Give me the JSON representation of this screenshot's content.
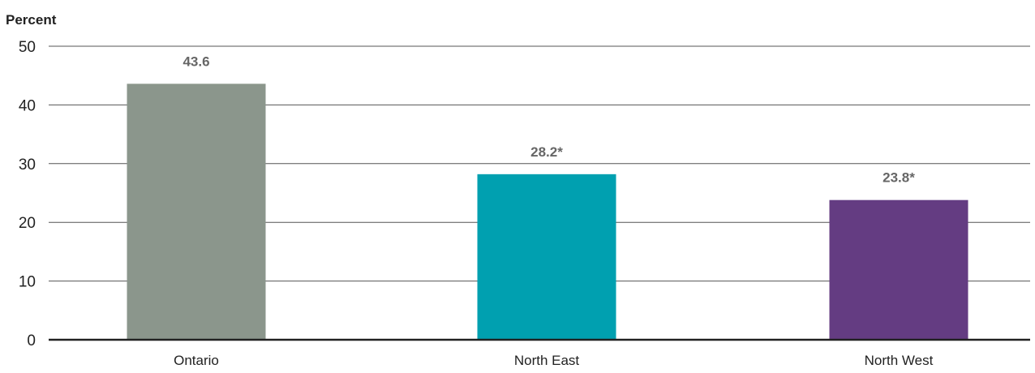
{
  "chart_data": {
    "type": "bar",
    "title": "",
    "ylabel": "Percent",
    "xlabel": "",
    "ylim": [
      0,
      50
    ],
    "yticks": [
      0,
      10,
      20,
      30,
      40,
      50
    ],
    "grid": true,
    "categories": [
      "Ontario",
      "North East",
      "North West"
    ],
    "values": [
      43.6,
      28.2,
      23.8
    ],
    "data_labels": [
      "43.6",
      "28.2*",
      "23.8*"
    ],
    "colors": [
      "#8b968c",
      "#00a0b0",
      "#643c82"
    ]
  }
}
